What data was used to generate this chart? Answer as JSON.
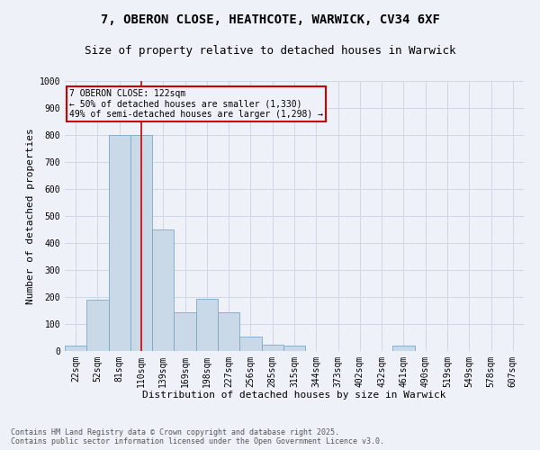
{
  "title_line1": "7, OBERON CLOSE, HEATHCOTE, WARWICK, CV34 6XF",
  "title_line2": "Size of property relative to detached houses in Warwick",
  "xlabel": "Distribution of detached houses by size in Warwick",
  "ylabel": "Number of detached properties",
  "categories": [
    "22sqm",
    "52sqm",
    "81sqm",
    "110sqm",
    "139sqm",
    "169sqm",
    "198sqm",
    "227sqm",
    "256sqm",
    "285sqm",
    "315sqm",
    "344sqm",
    "373sqm",
    "402sqm",
    "432sqm",
    "461sqm",
    "490sqm",
    "519sqm",
    "549sqm",
    "578sqm",
    "607sqm"
  ],
  "values": [
    20,
    190,
    800,
    800,
    450,
    145,
    195,
    145,
    55,
    25,
    20,
    0,
    0,
    0,
    0,
    20,
    0,
    0,
    0,
    0,
    0
  ],
  "bar_color": "#c9d9e8",
  "bar_edge_color": "#7aaac8",
  "grid_color": "#d0d8e8",
  "background_color": "#eef2f8",
  "vline_x_index": 3,
  "vline_color": "#cc0000",
  "annotation_line1": "7 OBERON CLOSE: 122sqm",
  "annotation_line2": "← 50% of detached houses are smaller (1,330)",
  "annotation_line3": "49% of semi-detached houses are larger (1,298) →",
  "annotation_box_color": "#cc0000",
  "ylim": [
    0,
    1000
  ],
  "yticks": [
    0,
    100,
    200,
    300,
    400,
    500,
    600,
    700,
    800,
    900,
    1000
  ],
  "footnote1": "Contains HM Land Registry data © Crown copyright and database right 2025.",
  "footnote2": "Contains public sector information licensed under the Open Government Licence v3.0.",
  "title_fontsize": 10,
  "subtitle_fontsize": 9,
  "axis_label_fontsize": 8,
  "tick_fontsize": 7,
  "annotation_fontsize": 7,
  "footnote_fontsize": 6
}
